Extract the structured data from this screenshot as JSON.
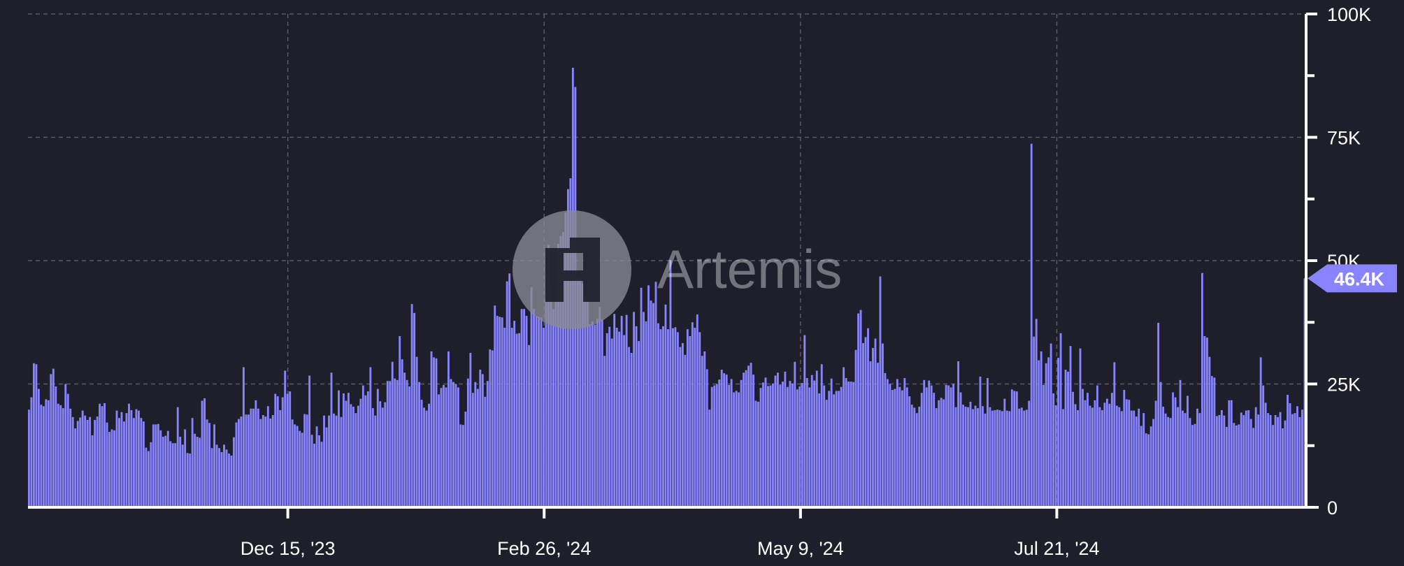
{
  "chart_data": {
    "type": "bar",
    "title": "",
    "xlabel": "",
    "ylabel": "",
    "bar_color": "#8884ff",
    "background": "#1e1f2b",
    "grid": true,
    "y_axis_side": "right",
    "ylim": [
      0,
      100000
    ],
    "y_ticks": [
      {
        "value": 0,
        "label": "0"
      },
      {
        "value": 25000,
        "label": "25K"
      },
      {
        "value": 50000,
        "label": "50K"
      },
      {
        "value": 75000,
        "label": "75K"
      },
      {
        "value": 100000,
        "label": "100K"
      }
    ],
    "y_minor_ticks": [
      12500,
      37500,
      62500,
      87500
    ],
    "x_ticks": [
      {
        "date": "2023-12-15",
        "label": "Dec 15, '23"
      },
      {
        "date": "2024-02-26",
        "label": "Feb 26, '24"
      },
      {
        "date": "2024-05-09",
        "label": "May 9, '24"
      },
      {
        "date": "2024-07-21",
        "label": "Jul 21, '24"
      }
    ],
    "x_start": "2023-10-02",
    "x_end": "2024-09-30",
    "last_value_label": "46.4K",
    "last_value": 46400,
    "values": [
      19800,
      22300,
      29200,
      29000,
      24000,
      20800,
      20500,
      21900,
      21700,
      27000,
      28100,
      24500,
      21000,
      20700,
      20100,
      25000,
      23000,
      20000,
      18300,
      16000,
      17500,
      18200,
      19600,
      18600,
      17700,
      18300,
      14600,
      17700,
      18400,
      21000,
      20500,
      21100,
      17200,
      15300,
      15800,
      15600,
      19600,
      18100,
      19300,
      17400,
      19100,
      21000,
      19700,
      18100,
      19900,
      19600,
      18100,
      17400,
      12100,
      11400,
      13200,
      16800,
      16800,
      16900,
      15600,
      14300,
      14500,
      15500,
      13400,
      13000,
      13000,
      20300,
      14300,
      12700,
      15800,
      11000,
      10900,
      18100,
      14900,
      14300,
      14100,
      21600,
      22100,
      17800,
      17100,
      12000,
      16800,
      12700,
      12000,
      11200,
      12700,
      11700,
      10900,
      10500,
      14200,
      17200,
      17900,
      18400,
      28400,
      18800,
      18800,
      20000,
      20000,
      21700,
      20000,
      17900,
      18700,
      18400,
      20500,
      18000,
      18700,
      23000,
      22500,
      19700,
      22300,
      27700,
      23000,
      23500,
      17800,
      16800,
      16500,
      15500,
      15100,
      18900,
      18800,
      26700,
      14700,
      12900,
      16400,
      14600,
      13300,
      18600,
      16200,
      18600,
      27300,
      19000,
      18600,
      23700,
      18300,
      23100,
      21600,
      23200,
      20900,
      20400,
      19100,
      20600,
      22000,
      24700,
      22700,
      23500,
      28400,
      20100,
      18600,
      24000,
      21500,
      20200,
      21300,
      25600,
      25600,
      29500,
      26100,
      25800,
      34700,
      30000,
      27300,
      25800,
      24500,
      41200,
      39400,
      30500,
      25400,
      21800,
      20200,
      19600,
      21000,
      31600,
      30400,
      30200,
      22900,
      24200,
      24800,
      24300,
      31600,
      26000,
      25400,
      25000,
      24300,
      16800,
      16700,
      19400,
      26100,
      31300,
      23200,
      25400,
      24000,
      27900,
      27000,
      22400,
      25600,
      32000,
      31800,
      40900,
      38800,
      38600,
      38500,
      36400,
      45800,
      47400,
      36400,
      37800,
      35200,
      35300,
      40200,
      40200,
      38800,
      32900,
      44600,
      40200,
      38800,
      38600,
      38500,
      36400,
      42200,
      53200,
      44600,
      40200,
      45900,
      53400,
      55000,
      55800,
      59800,
      64500,
      66700,
      89100,
      85200,
      46600,
      46800,
      45400,
      43100,
      41800,
      37100,
      37700,
      37000,
      38200,
      40600,
      38100,
      30700,
      35300,
      36600,
      34200,
      39200,
      36400,
      35600,
      38800,
      34900,
      39000,
      32500,
      31300,
      39600,
      36700,
      33700,
      44500,
      39600,
      37700,
      45000,
      41900,
      41400,
      45700,
      37300,
      36100,
      36700,
      41100,
      36100,
      50100,
      36300,
      36500,
      35500,
      32500,
      33300,
      30900,
      36100,
      34700,
      37500,
      36400,
      39100,
      35500,
      30700,
      31600,
      28000,
      19800,
      24400,
      24700,
      25000,
      25900,
      27900,
      27200,
      26900,
      24800,
      26000,
      23300,
      23600,
      23300,
      25800,
      27300,
      27800,
      28700,
      29300,
      26900,
      21600,
      21400,
      24200,
      25300,
      26300,
      24600,
      24700,
      25100,
      26700,
      27300,
      24900,
      25500,
      27500,
      24400,
      25600,
      25100,
      29500,
      23900,
      24500,
      25200,
      34900,
      26200,
      24300,
      26800,
      25700,
      27700,
      23100,
      29000,
      24700,
      21800,
      23600,
      26100,
      22900,
      23600,
      23600,
      24400,
      28400,
      26200,
      25500,
      25500,
      25400,
      31900,
      39300,
      40000,
      33300,
      34500,
      36300,
      29600,
      32300,
      34200,
      29300,
      46800,
      33200,
      27200,
      26000,
      25000,
      23800,
      24000,
      26000,
      24400,
      23700,
      26200,
      24300,
      22500,
      20800,
      20200,
      19100,
      20400,
      23200,
      25800,
      24300,
      25700,
      24700,
      23200,
      20100,
      21700,
      22200,
      21900,
      24800,
      24700,
      24300,
      25000,
      20300,
      29600,
      23300,
      20800,
      20400,
      20300,
      21400,
      19900,
      20600,
      20100,
      26500,
      20500,
      19000,
      26200,
      20300,
      19600,
      19700,
      19800,
      19700,
      19500,
      22000,
      19600,
      19500,
      23900,
      23600,
      23500,
      20000,
      20200,
      19600,
      19800,
      21600,
      73700,
      34600,
      38200,
      29800,
      31600,
      24800,
      29200,
      30400,
      33200,
      23100,
      20700,
      30300,
      35300,
      19900,
      27900,
      27500,
      32700,
      23400,
      20900,
      19700,
      32200,
      24000,
      21700,
      23200,
      20600,
      20200,
      21700,
      24700,
      20300,
      19700,
      21200,
      22000,
      21000,
      23200,
      29400,
      20600,
      20300,
      19500,
      23800,
      21900,
      21800,
      19600,
      19600,
      18400,
      20000,
      16500,
      19100,
      15000,
      14800,
      16400,
      17900,
      21600,
      37400,
      25400,
      20400,
      19000,
      18300,
      18100,
      23300,
      22300,
      20300,
      25800,
      19600,
      19100,
      22600,
      18100,
      16700,
      16900,
      20000,
      19100,
      47500,
      34700,
      34400,
      30500,
      26600,
      26300,
      18500,
      18700,
      19700,
      18600,
      16300,
      21700,
      21700,
      17100,
      16600,
      16800,
      19200,
      18700,
      19600,
      19700,
      17900,
      16100,
      20300,
      18800,
      30400,
      24700,
      21200,
      19100,
      18700,
      16700,
      18700,
      18300,
      19300,
      16000,
      17600,
      22800,
      21100,
      18900,
      19100,
      20500,
      18300,
      19800,
      46400
    ]
  },
  "watermark": {
    "text": "Artemis",
    "logo": "artemis-logo-icon"
  }
}
